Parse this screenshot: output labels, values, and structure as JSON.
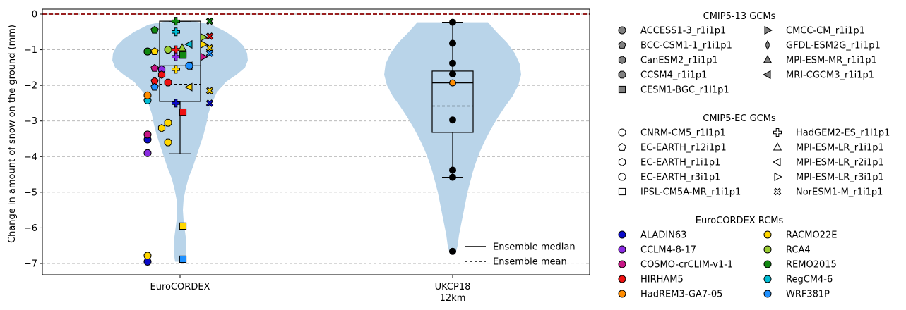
{
  "chart_data": {
    "type": "violin",
    "ylabel": "Change in amount of snow on the ground (mm)",
    "ylim": [
      -7.3,
      0.15
    ],
    "yticks": [
      0,
      -1,
      -2,
      -3,
      -4,
      -5,
      -6,
      -7
    ],
    "grid": "y-dashed",
    "reference_line": {
      "y": 0,
      "color": "#8b0000",
      "style": "dashed"
    },
    "categories": [
      {
        "label": "EuroCORDEX",
        "sublabel": ""
      },
      {
        "label": "UKCP18",
        "sublabel": "12km"
      }
    ],
    "colors": {
      "violin": "#b9d4e9",
      "RCM": {
        "ALADIN63": "#0a0ac8",
        "CCLM4-8-17": "#8a2be2",
        "COSMO-crCLIM-v1-1": "#c71585",
        "HIRHAM5": "#ee1111",
        "HadREM3-GA7-05": "#ff8c00",
        "RACMO22E": "#ffd700",
        "RCA4": "#9acd32",
        "REMO2015": "#118811",
        "RegCM4-6": "#00bcd4",
        "WRF381P": "#1e90ff"
      }
    },
    "boxes": [
      {
        "category": "EuroCORDEX",
        "q1": -2.45,
        "median": -1.45,
        "mean": -1.97,
        "q3": -0.2,
        "whisker_low": -3.92,
        "whisker_high": -0.2
      },
      {
        "category": "UKCP18",
        "q1": -3.32,
        "median": -1.93,
        "mean": -2.58,
        "q3": -1.6,
        "whisker_low": -4.58,
        "whisker_high": -0.23
      }
    ],
    "ukcp18_points": [
      -0.23,
      -0.82,
      -1.38,
      -1.68,
      -1.93,
      -2.97,
      -4.38,
      -4.58,
      -6.66
    ],
    "eurocordex_points": [
      {
        "gcm": "CNRM-CM5_r1i1p1",
        "rcm": "ALADIN63",
        "y": -6.95
      },
      {
        "gcm": "CNRM-CM5_r1i1p1",
        "rcm": "RACMO22E",
        "y": -6.78
      },
      {
        "gcm": "CNRM-CM5_r1i1p1",
        "rcm": "CCLM4-8-17",
        "y": -3.9
      },
      {
        "gcm": "CNRM-CM5_r1i1p1",
        "rcm": "ALADIN63",
        "y": -3.52
      },
      {
        "gcm": "CNRM-CM5_r1i1p1",
        "rcm": "COSMO-crCLIM-v1-1",
        "y": -3.38
      },
      {
        "gcm": "CNRM-CM5_r1i1p1",
        "rcm": "RegCM4-6",
        "y": -2.42
      },
      {
        "gcm": "CNRM-CM5_r1i1p1",
        "rcm": "HadREM3-GA7-05",
        "y": -2.28
      },
      {
        "gcm": "CNRM-CM5_r1i1p1",
        "rcm": "RCA4",
        "y": -1.05
      },
      {
        "gcm": "CNRM-CM5_r1i1p1",
        "rcm": "REMO2015",
        "y": -1.05
      },
      {
        "gcm": "EC-EARTH_r12i1p1",
        "rcm": "REMO2015",
        "y": -0.45
      },
      {
        "gcm": "EC-EARTH_r12i1p1",
        "rcm": "RACMO22E",
        "y": -1.05
      },
      {
        "gcm": "EC-EARTH_r12i1p1",
        "rcm": "COSMO-crCLIM-v1-1",
        "y": -1.52
      },
      {
        "gcm": "EC-EARTH_r12i1p1",
        "rcm": "HIRHAM5",
        "y": -1.88
      },
      {
        "gcm": "EC-EARTH_r12i1p1",
        "rcm": "WRF381P",
        "y": -2.05
      },
      {
        "gcm": "EC-EARTH_r1i1p1",
        "rcm": "RACMO22E",
        "y": -3.2
      },
      {
        "gcm": "EC-EARTH_r1i1p1",
        "rcm": "CCLM4-8-17",
        "y": -1.55
      },
      {
        "gcm": "EC-EARTH_r1i1p1",
        "rcm": "HIRHAM5",
        "y": -1.7
      },
      {
        "gcm": "EC-EARTH_r3i1p1",
        "rcm": "RACMO22E",
        "y": -3.05
      },
      {
        "gcm": "EC-EARTH_r3i1p1",
        "rcm": "HIRHAM5",
        "y": -1.92
      },
      {
        "gcm": "EC-EARTH_r3i1p1",
        "rcm": "RACMO22E",
        "y": -3.6
      },
      {
        "gcm": "EC-EARTH_r3i1p1",
        "rcm": "RCA4",
        "y": -1.0
      },
      {
        "gcm": "IPSL-CM5A-MR_r1i1p1",
        "rcm": "RACMO22E",
        "y": -5.95
      },
      {
        "gcm": "IPSL-CM5A-MR_r1i1p1",
        "rcm": "WRF381P",
        "y": -6.88
      },
      {
        "gcm": "IPSL-CM5A-MR_r1i1p1",
        "rcm": "HIRHAM5",
        "y": -2.75
      },
      {
        "gcm": "IPSL-CM5A-MR_r1i1p1",
        "rcm": "REMO2015",
        "y": -1.15
      },
      {
        "gcm": "IPSL-CM5A-MR_r1i1p1",
        "rcm": "RCA4",
        "y": -1.1
      },
      {
        "gcm": "HadGEM2-ES_r1i1p1",
        "rcm": "REMO2015",
        "y": -0.2
      },
      {
        "gcm": "HadGEM2-ES_r1i1p1",
        "rcm": "RegCM4-6",
        "y": -0.5
      },
      {
        "gcm": "HadGEM2-ES_r1i1p1",
        "rcm": "HIRHAM5",
        "y": -1.0
      },
      {
        "gcm": "HadGEM2-ES_r1i1p1",
        "rcm": "CCLM4-8-17",
        "y": -1.2
      },
      {
        "gcm": "HadGEM2-ES_r1i1p1",
        "rcm": "RACMO22E",
        "y": -1.55
      },
      {
        "gcm": "HadGEM2-ES_r1i1p1",
        "rcm": "ALADIN63",
        "y": -2.5
      },
      {
        "gcm": "MPI-ESM-LR_r1i1p1",
        "rcm": "RCA4",
        "y": -0.95
      },
      {
        "gcm": "MPI-ESM-LR_r2i1p1",
        "rcm": "ALADIN63",
        "y": -1.45
      },
      {
        "gcm": "MPI-ESM-LR_r2i1p1",
        "rcm": "RACMO22E",
        "y": -2.05
      },
      {
        "gcm": "MPI-ESM-LR_r2i1p1",
        "rcm": "RegCM4-6",
        "y": -0.85
      },
      {
        "gcm": "MPI-ESM-LR_r3i1p1",
        "rcm": "COSMO-crCLIM-v1-1",
        "y": -1.2
      },
      {
        "gcm": "MPI-ESM-LR_r3i1p1",
        "rcm": "RACMO22E",
        "y": -0.85
      },
      {
        "gcm": "MPI-ESM-LR_r3i1p1",
        "rcm": "RCA4",
        "y": -0.65
      },
      {
        "gcm": "NorESM1-M_r1i1p1",
        "rcm": "REMO2015",
        "y": -0.2
      },
      {
        "gcm": "NorESM1-M_r1i1p1",
        "rcm": "HIRHAM5",
        "y": -0.62
      },
      {
        "gcm": "NorESM1-M_r1i1p1",
        "rcm": "RACMO22E",
        "y": -0.95
      },
      {
        "gcm": "NorESM1-M_r1i1p1",
        "rcm": "WRF381P",
        "y": -1.1
      },
      {
        "gcm": "NorESM1-M_r1i1p1",
        "rcm": "RACMO22E",
        "y": -2.15
      },
      {
        "gcm": "NorESM1-M_r1i1p1",
        "rcm": "ALADIN63",
        "y": -2.5
      },
      {
        "gcm": "CCSM4_r1i1p1",
        "rcm": "WRF381P",
        "y": -1.45
      },
      {
        "gcm": "CESM1-BGC_r1i1p1",
        "rcm": "REMO2015",
        "y": -1.15
      }
    ]
  },
  "legend": {
    "gcm13": {
      "title": "CMIP5-13 GCMs",
      "items": [
        {
          "label": "ACCESS1-3_r1i1p1",
          "marker": "circle"
        },
        {
          "label": "BCC-CSM1-1_r1i1p1",
          "marker": "pentagon"
        },
        {
          "label": "CanESM2_r1i1p1",
          "marker": "hexagon"
        },
        {
          "label": "CCSM4_r1i1p1",
          "marker": "octagon"
        },
        {
          "label": "CESM1-BGC_r1i1p1",
          "marker": "square"
        },
        {
          "label": "CMCC-CM_r1i1p1",
          "marker": "triangle-right"
        },
        {
          "label": "GFDL-ESM2G_r1i1p1",
          "marker": "thin-diamond"
        },
        {
          "label": "MPI-ESM-MR_r1i1p1",
          "marker": "triangle-up"
        },
        {
          "label": "MRI-CGCM3_r1i1p1",
          "marker": "triangle-left"
        }
      ]
    },
    "gcmEC": {
      "title": "CMIP5-EC GCMs",
      "items": [
        {
          "label": "CNRM-CM5_r1i1p1",
          "marker": "circle"
        },
        {
          "label": "EC-EARTH_r12i1p1",
          "marker": "pentagon"
        },
        {
          "label": "EC-EARTH_r1i1p1",
          "marker": "hexagon"
        },
        {
          "label": "EC-EARTH_r3i1p1",
          "marker": "octagon"
        },
        {
          "label": "IPSL-CM5A-MR_r1i1p1",
          "marker": "square"
        },
        {
          "label": "HadGEM2-ES_r1i1p1",
          "marker": "plus"
        },
        {
          "label": "MPI-ESM-LR_r1i1p1",
          "marker": "triangle-up"
        },
        {
          "label": "MPI-ESM-LR_r2i1p1",
          "marker": "triangle-left"
        },
        {
          "label": "MPI-ESM-LR_r3i1p1",
          "marker": "triangle-right"
        },
        {
          "label": "NorESM1-M_r1i1p1",
          "marker": "x"
        }
      ]
    },
    "rcm": {
      "title": "EuroCORDEX RCMs",
      "items": [
        {
          "label": "ALADIN63"
        },
        {
          "label": "CCLM4-8-17"
        },
        {
          "label": "COSMO-crCLIM-v1-1"
        },
        {
          "label": "HIRHAM5"
        },
        {
          "label": "HadREM3-GA7-05"
        },
        {
          "label": "RACMO22E"
        },
        {
          "label": "RCA4"
        },
        {
          "label": "REMO2015"
        },
        {
          "label": "RegCM4-6"
        },
        {
          "label": "WRF381P"
        }
      ]
    },
    "ensemble": [
      {
        "label": "Ensemble median",
        "style": "solid"
      },
      {
        "label": "Ensemble mean",
        "style": "dashed"
      }
    ]
  }
}
